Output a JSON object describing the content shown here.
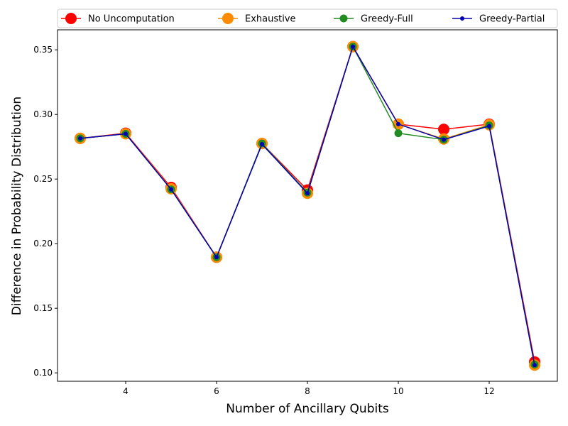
{
  "chart_data": {
    "type": "line",
    "title": "",
    "xlabel": "Number of Ancillary Qubits",
    "ylabel": "Difference in Probability Distribution",
    "xlim": [
      2.5,
      13.5
    ],
    "ylim": [
      0.0935,
      0.3655
    ],
    "xticks": [
      4,
      6,
      8,
      10,
      12
    ],
    "xtick_labels": [
      "4",
      "6",
      "8",
      "10",
      "12"
    ],
    "yticks": [
      0.1,
      0.15,
      0.2,
      0.25,
      0.3,
      0.35
    ],
    "ytick_labels": [
      "0.10",
      "0.15",
      "0.20",
      "0.25",
      "0.30",
      "0.35"
    ],
    "grid": false,
    "legend_position": "top, outside plot, single row",
    "x": [
      3,
      4,
      5,
      6,
      7,
      8,
      9,
      10,
      11,
      12,
      13
    ],
    "series": [
      {
        "name": "No Uncomputation",
        "color": "#ff0000",
        "marker": "large-circle",
        "values": [
          0.2815,
          0.2855,
          0.2435,
          0.1895,
          0.2775,
          0.2415,
          0.3525,
          0.2925,
          0.2885,
          0.2925,
          0.1085
        ]
      },
      {
        "name": "Exhaustive",
        "color": "#ff8c00",
        "marker": "large-circle",
        "values": [
          0.2815,
          0.285,
          0.2425,
          0.1895,
          0.2775,
          0.239,
          0.3525,
          0.2925,
          0.281,
          0.292,
          0.106
        ]
      },
      {
        "name": "Greedy-Full",
        "color": "#228b22",
        "marker": "medium-circle",
        "values": [
          0.2815,
          0.285,
          0.242,
          0.1895,
          0.2775,
          0.2395,
          0.3525,
          0.2855,
          0.2805,
          0.2915,
          0.1065
        ]
      },
      {
        "name": "Greedy-Partial",
        "color": "#0000b3",
        "marker": "small-circle",
        "values": [
          0.2815,
          0.285,
          0.242,
          0.1895,
          0.277,
          0.239,
          0.3525,
          0.2925,
          0.2805,
          0.291,
          0.106
        ]
      }
    ]
  }
}
